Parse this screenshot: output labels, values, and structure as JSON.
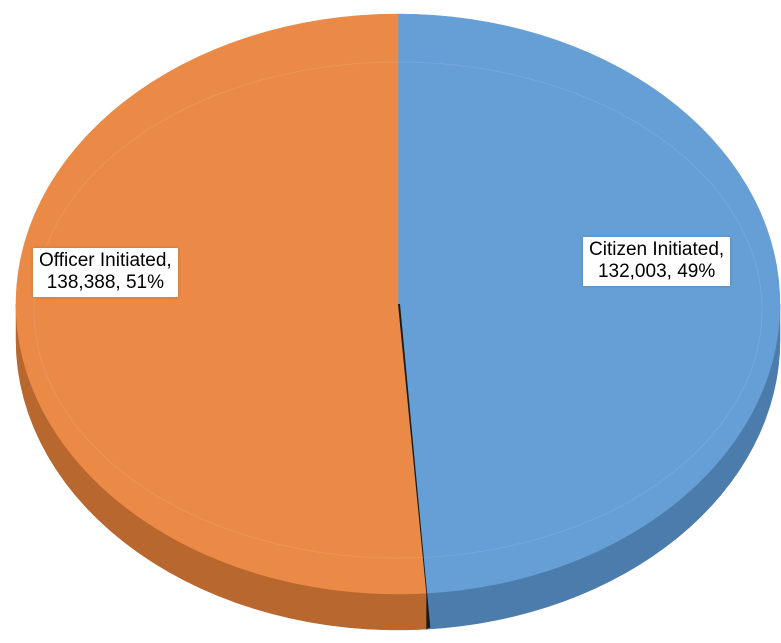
{
  "chart_data": {
    "type": "pie",
    "style": "3d",
    "title": "",
    "slices": [
      {
        "label": "Citizen Initiated",
        "value": 132003,
        "percent": 49,
        "color": "#659fd5",
        "side_color": "#4b7cab",
        "label_lines": [
          "Citizen Initiated,",
          "132,003, 49%"
        ]
      },
      {
        "label": "Officer Initiated",
        "value": 138388,
        "percent": 51,
        "color": "#ea8a46",
        "side_color": "#b8672f",
        "label_lines": [
          "Officer Initiated,",
          "138,388, 51%"
        ]
      }
    ]
  }
}
